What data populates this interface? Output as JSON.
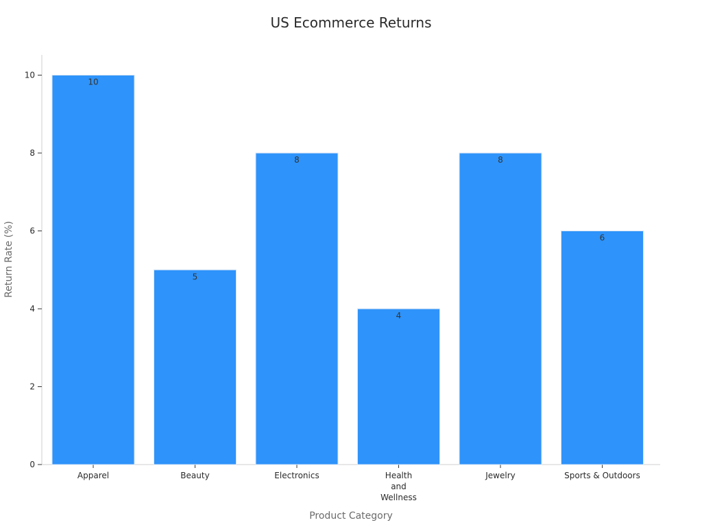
{
  "chart_data": {
    "type": "bar",
    "title": "US Ecommerce Returns",
    "xlabel": "Product Category",
    "ylabel": "Return Rate (%)",
    "categories": [
      [
        "Apparel"
      ],
      [
        "Beauty"
      ],
      [
        "Electronics"
      ],
      [
        "Health",
        "and",
        "Wellness"
      ],
      [
        "Jewelry"
      ],
      [
        "Sports & Outdoors"
      ]
    ],
    "values": [
      10,
      5,
      8,
      4,
      8,
      6
    ],
    "data_labels": [
      "10",
      "5",
      "8",
      "4",
      "8",
      "6"
    ],
    "yticks": [
      "0",
      "2",
      "4",
      "6",
      "8",
      "10"
    ],
    "ylim": [
      0,
      10.5
    ],
    "grid": false,
    "legend": "none",
    "colors": {
      "bar": "#2e93fa",
      "bar_edge": "#d8e6f5",
      "axis": "#cfcfcf",
      "text": "#2a2a2a"
    }
  }
}
